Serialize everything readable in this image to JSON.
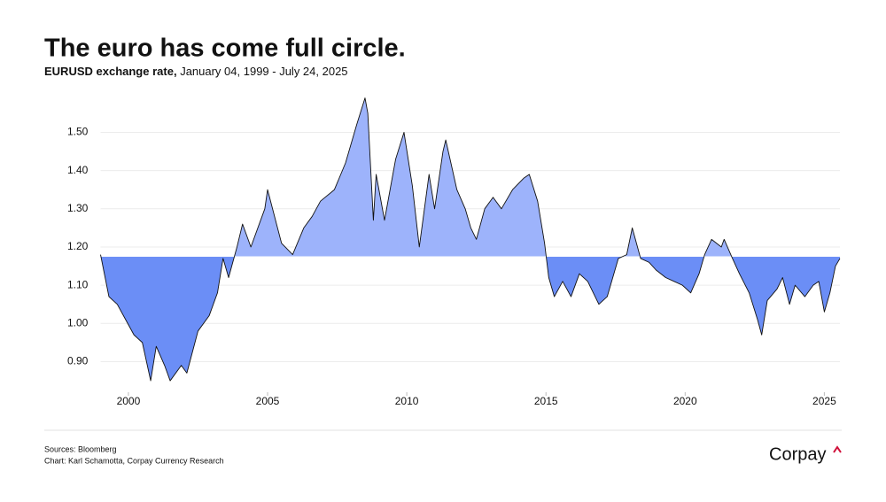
{
  "chart_data": {
    "type": "area-line",
    "title": "The euro has come full circle.",
    "subtitle_bold": "EURUSD exchange rate,",
    "subtitle": "January 04, 1999 - July 24, 2025",
    "sources": "Sources: Bloomberg",
    "credit": "Chart: Karl Schamotta, Corpay Currency Research",
    "logo": "Corpay",
    "baseline": 1.175,
    "color_above": "#9db3fb",
    "color_below": "#6b8ef6",
    "line_color": "#111111",
    "grid": true,
    "xlim": [
      1999.0,
      2025.56
    ],
    "xticks": [
      2000,
      2005,
      2010,
      2015,
      2020,
      2025
    ],
    "ylim": [
      0.82,
      1.61
    ],
    "yticks": [
      {
        "value": 0.9,
        "label": "0.90"
      },
      {
        "value": 1.0,
        "label": "1.00"
      },
      {
        "value": 1.1,
        "label": "1.10"
      },
      {
        "value": 1.2,
        "label": "1.20"
      },
      {
        "value": 1.3,
        "label": "1.30"
      },
      {
        "value": 1.4,
        "label": "1.40"
      },
      {
        "value": 1.5,
        "label": "1.50"
      }
    ],
    "x": [
      1999.0,
      1999.3,
      1999.6,
      1999.9,
      2000.2,
      2000.5,
      2000.8,
      2001.0,
      2001.3,
      2001.5,
      2001.9,
      2002.1,
      2002.5,
      2002.9,
      2003.2,
      2003.4,
      2003.6,
      2003.9,
      2004.1,
      2004.4,
      2004.9,
      2005.0,
      2005.5,
      2005.9,
      2006.3,
      2006.6,
      2006.9,
      2007.4,
      2007.8,
      2008.2,
      2008.5,
      2008.6,
      2008.8,
      2008.9,
      2009.2,
      2009.6,
      2009.9,
      2010.2,
      2010.45,
      2010.8,
      2011.0,
      2011.3,
      2011.4,
      2011.8,
      2012.1,
      2012.3,
      2012.5,
      2012.8,
      2013.1,
      2013.4,
      2013.8,
      2014.2,
      2014.4,
      2014.7,
      2014.95,
      2015.1,
      2015.3,
      2015.6,
      2015.9,
      2016.2,
      2016.5,
      2016.9,
      2017.2,
      2017.6,
      2017.9,
      2018.1,
      2018.4,
      2018.7,
      2018.95,
      2019.3,
      2019.6,
      2019.9,
      2020.2,
      2020.5,
      2020.7,
      2020.95,
      2021.3,
      2021.4,
      2021.7,
      2021.95,
      2022.3,
      2022.6,
      2022.75,
      2022.95,
      2023.3,
      2023.5,
      2023.75,
      2023.95,
      2024.3,
      2024.6,
      2024.8,
      2025.0,
      2025.2,
      2025.4,
      2025.56
    ],
    "values": [
      1.18,
      1.07,
      1.05,
      1.01,
      0.97,
      0.95,
      0.85,
      0.94,
      0.89,
      0.85,
      0.89,
      0.87,
      0.98,
      1.02,
      1.08,
      1.17,
      1.12,
      1.2,
      1.26,
      1.2,
      1.3,
      1.35,
      1.21,
      1.18,
      1.25,
      1.28,
      1.32,
      1.35,
      1.42,
      1.52,
      1.59,
      1.55,
      1.27,
      1.39,
      1.27,
      1.43,
      1.5,
      1.36,
      1.2,
      1.39,
      1.3,
      1.45,
      1.48,
      1.35,
      1.3,
      1.25,
      1.22,
      1.3,
      1.33,
      1.3,
      1.35,
      1.38,
      1.39,
      1.32,
      1.21,
      1.12,
      1.07,
      1.11,
      1.07,
      1.13,
      1.11,
      1.05,
      1.07,
      1.17,
      1.18,
      1.25,
      1.17,
      1.16,
      1.14,
      1.12,
      1.11,
      1.1,
      1.08,
      1.13,
      1.18,
      1.22,
      1.2,
      1.22,
      1.17,
      1.13,
      1.08,
      1.01,
      0.97,
      1.06,
      1.09,
      1.12,
      1.05,
      1.1,
      1.07,
      1.1,
      1.11,
      1.03,
      1.08,
      1.15,
      1.17
    ]
  }
}
